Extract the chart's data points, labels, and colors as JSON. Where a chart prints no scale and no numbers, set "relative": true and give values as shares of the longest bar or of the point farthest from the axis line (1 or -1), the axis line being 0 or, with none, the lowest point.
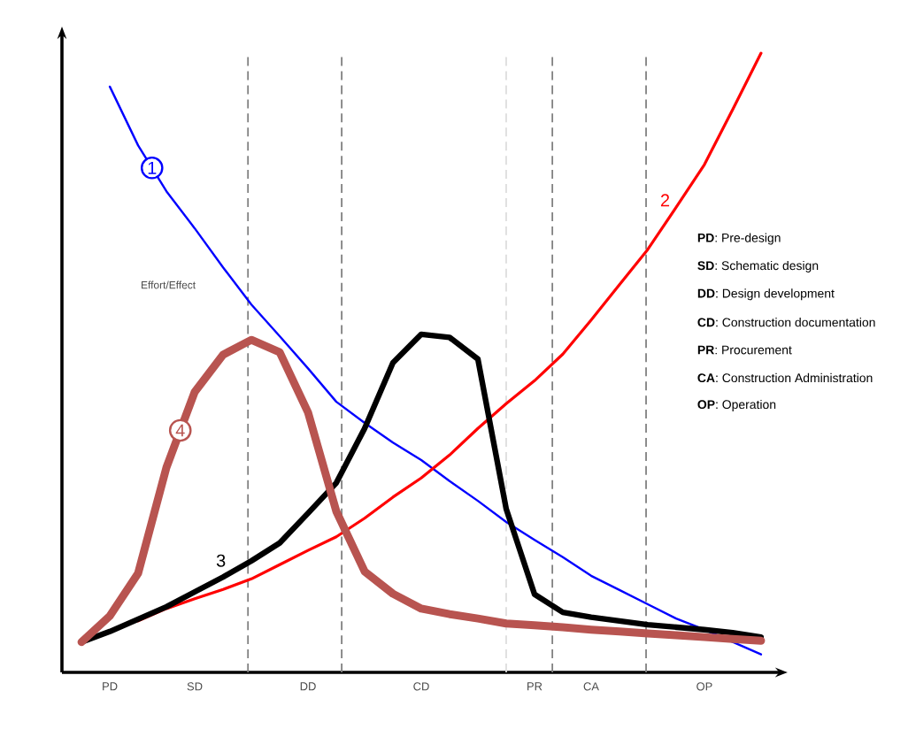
{
  "chart_data": {
    "type": "line",
    "relative": true,
    "ylabel": "Effort/Effect",
    "line_style": "solid",
    "marker": "none",
    "grid": "x",
    "categories": [
      null,
      "PD",
      null,
      null,
      "SD",
      null,
      null,
      null,
      "DD",
      null,
      null,
      null,
      "CD",
      null,
      null,
      null,
      "PR",
      null,
      "CA",
      null,
      null,
      null,
      "OP",
      null,
      null
    ],
    "series": [
      {
        "name": "1",
        "color": "#0000ff",
        "values": [
          null,
          0.946,
          0.851,
          0.777,
          0.717,
          0.654,
          0.594,
          0.543,
          0.491,
          0.437,
          0.403,
          0.371,
          0.343,
          0.309,
          0.277,
          0.243,
          0.214,
          0.186,
          0.156,
          0.133,
          0.11,
          0.087,
          0.069,
          0.049,
          0.029
        ]
      },
      {
        "name": "2",
        "color": "#ff0000",
        "values": [
          null,
          null,
          0.083,
          0.103,
          0.119,
          0.134,
          0.151,
          0.174,
          0.197,
          0.219,
          0.249,
          0.283,
          0.314,
          0.351,
          0.394,
          0.434,
          0.471,
          0.514,
          0.569,
          0.626,
          0.683,
          0.751,
          0.82,
          0.909,
          1.0
        ]
      },
      {
        "name": "3",
        "color": "#000000",
        "values": [
          0.049,
          0.066,
          0.086,
          0.106,
          0.13,
          0.154,
          0.18,
          0.209,
          0.257,
          0.306,
          0.394,
          0.5,
          0.546,
          0.541,
          0.506,
          0.264,
          0.126,
          0.097,
          0.089,
          0.083,
          0.077,
          0.073,
          0.069,
          0.064,
          0.057
        ]
      },
      {
        "name": "4",
        "color": "#b85450",
        "values": [
          0.049,
          0.091,
          0.16,
          0.331,
          0.453,
          0.513,
          0.537,
          0.517,
          0.42,
          0.26,
          0.163,
          0.127,
          0.103,
          0.094,
          0.087,
          0.079,
          0.076,
          0.073,
          0.069,
          0.066,
          0.063,
          0.06,
          0.057,
          0.054,
          0.051
        ]
      }
    ],
    "annotations": [
      "**PD**: Pre-design",
      "**SD**: Schematic design",
      "**DD**: Design development",
      "**CD**: Construction documentation",
      "**PR**: Procurement",
      "**CA**: Construction Administration",
      "**OP**: Operation"
    ]
  }
}
